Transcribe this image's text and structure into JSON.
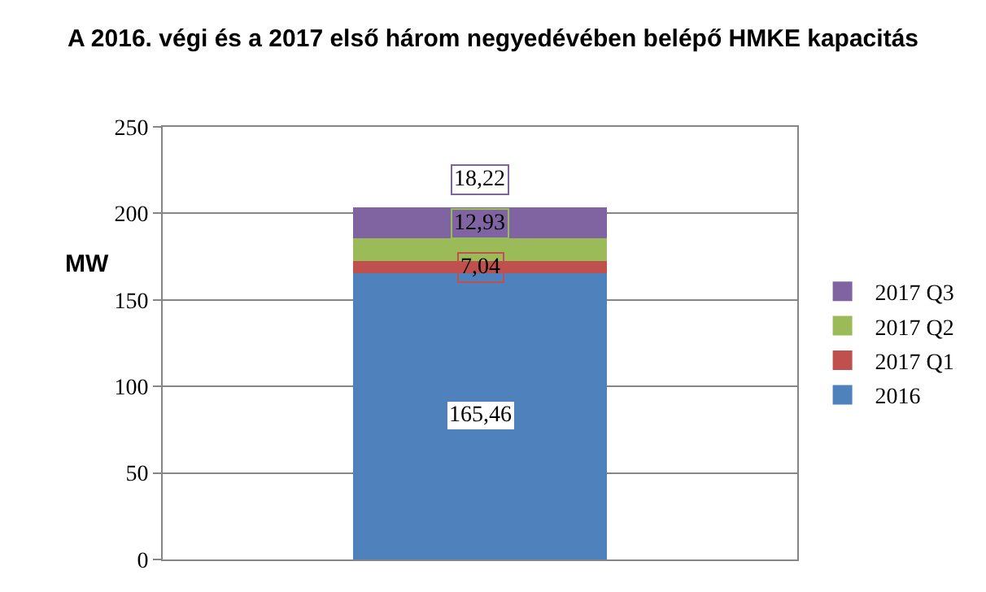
{
  "chart_data": {
    "type": "bar",
    "title": "A 2016. végi és a 2017 első három negyedévében belépő HMKE kapacitás",
    "ylabel": "MW",
    "categories": [
      null
    ],
    "stacked": true,
    "series": [
      {
        "name": "2016",
        "color": "#4f81bd",
        "values": [
          165.46
        ],
        "value_labels": [
          "165,46"
        ]
      },
      {
        "name": "2017 Q1",
        "color": "#c0504d",
        "values": [
          7.04
        ],
        "value_labels": [
          "7,04"
        ]
      },
      {
        "name": "2017 Q2",
        "color": "#9bbb59",
        "values": [
          12.93
        ],
        "value_labels": [
          "12,93"
        ]
      },
      {
        "name": "2017 Q3",
        "color": "#8064a2",
        "values": [
          18.22
        ],
        "value_labels": [
          "18,22"
        ]
      }
    ],
    "ylim": [
      0,
      250
    ],
    "yticks": [
      0,
      50,
      100,
      150,
      200,
      250
    ],
    "grid": "y",
    "legend": "right"
  }
}
